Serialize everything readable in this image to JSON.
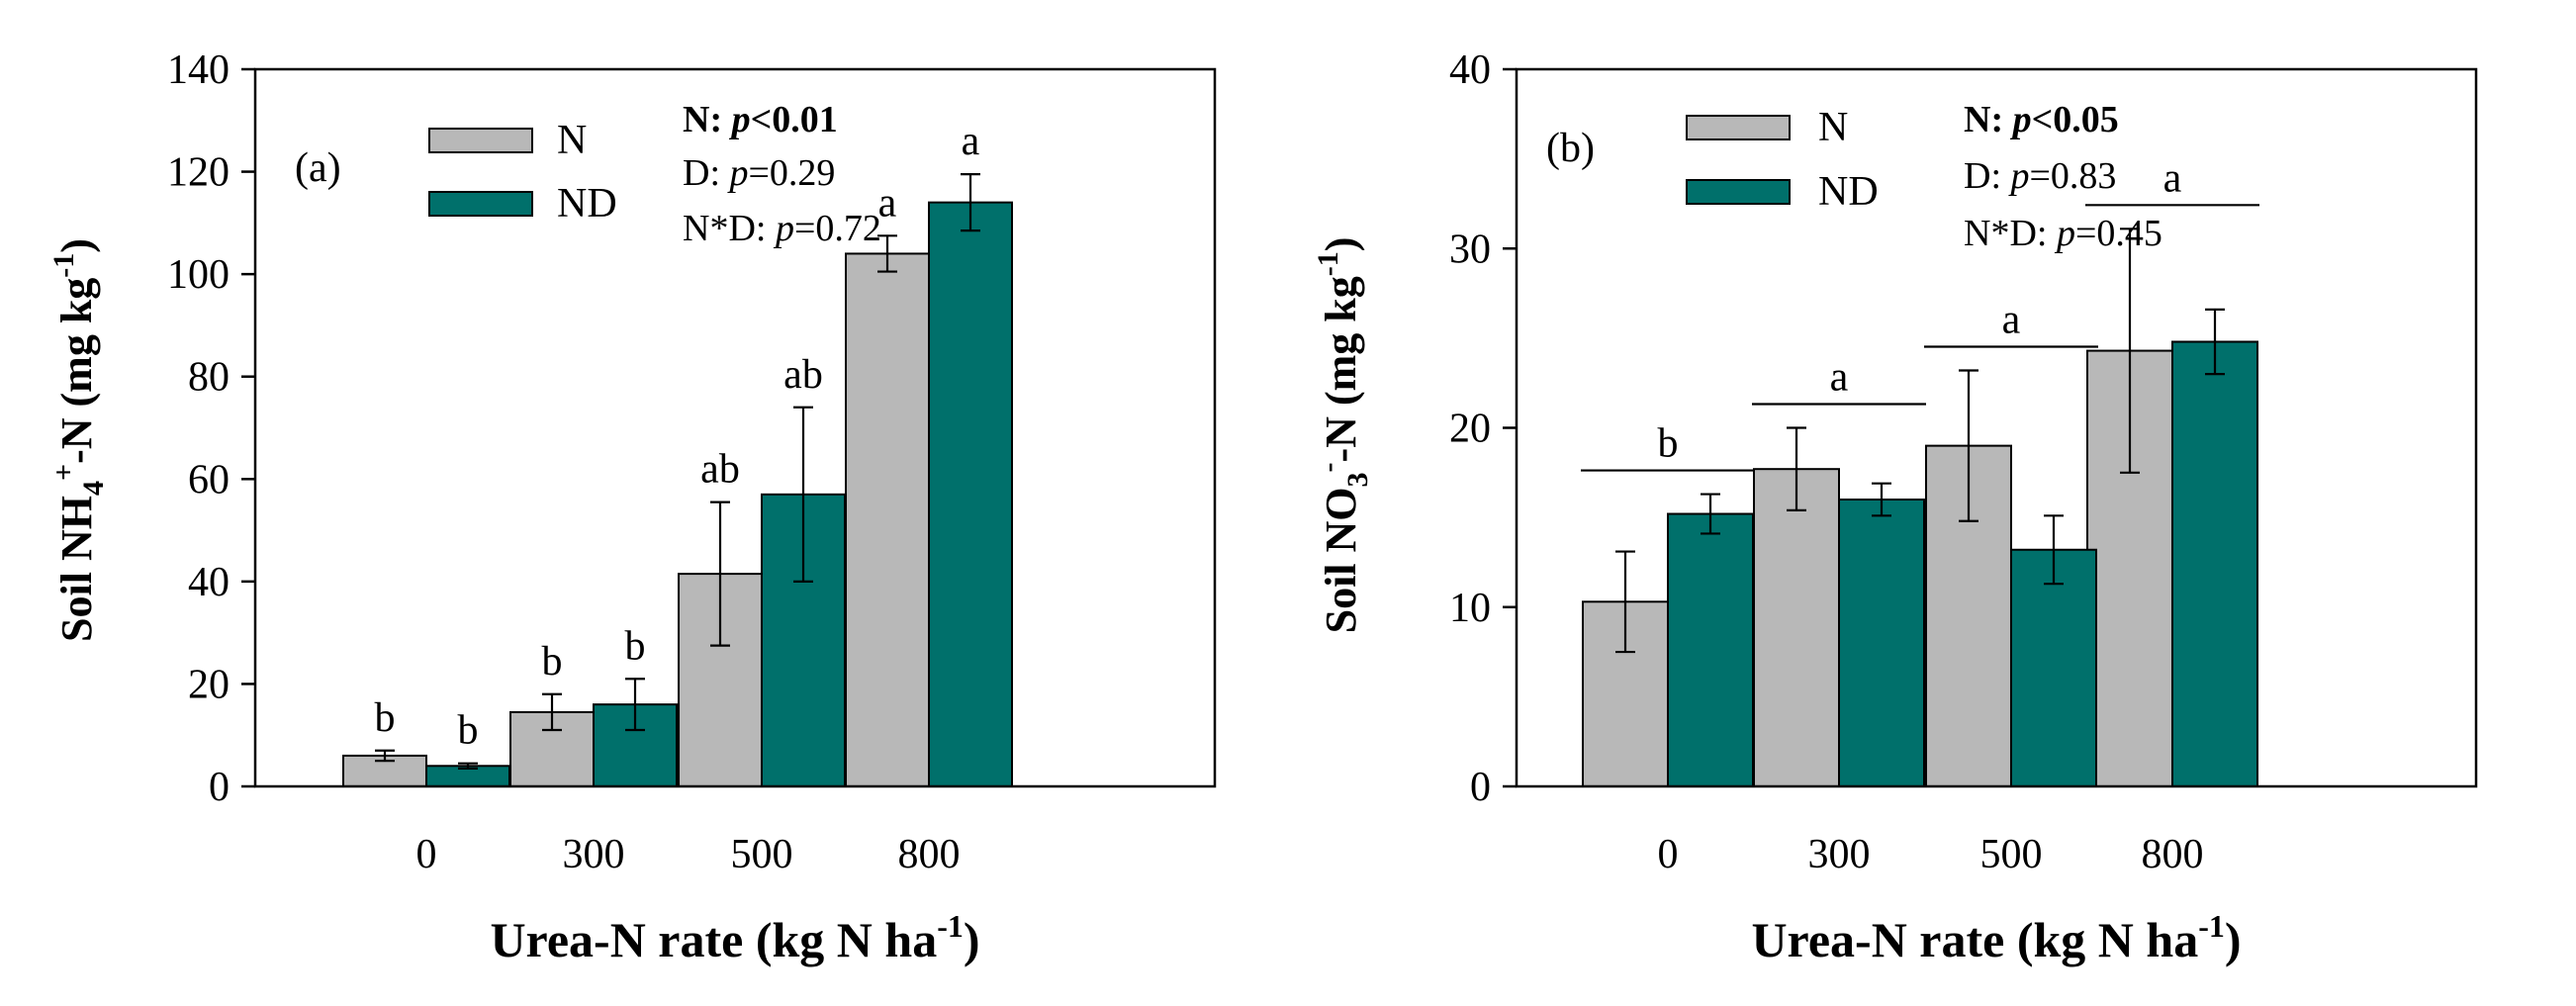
{
  "colors": {
    "N": "#b8b8b8",
    "ND": "#00706b",
    "axis": "#000000"
  },
  "chart_data": [
    {
      "type": "bar",
      "panel_label": "(a)",
      "categories": [
        "0",
        "300",
        "500",
        "800"
      ],
      "xlabel": "Urea-N rate (kg N ha",
      "xlabel_sup": "-1",
      "xlabel_end": ")",
      "ylabel": "Soil NH",
      "ylabel_sub": "4",
      "ylabel_sup": "+",
      "ylabel_mid": "-N (mg kg",
      "ylabel_sup2": "-1",
      "ylabel_end": ")",
      "ylim": [
        0,
        140
      ],
      "yticks": [
        "0",
        "20",
        "40",
        "60",
        "80",
        "100",
        "120",
        "140"
      ],
      "series": [
        {
          "name": "N",
          "values": [
            6,
            14.5,
            41.5,
            104
          ],
          "errors": [
            1,
            3.5,
            14,
            3.5
          ],
          "letters": [
            "b",
            "b",
            "ab",
            "a"
          ]
        },
        {
          "name": "ND",
          "values": [
            4,
            16,
            57,
            114
          ],
          "errors": [
            0.5,
            5,
            17,
            5.5
          ],
          "letters": [
            "b",
            "b",
            "ab",
            "a"
          ]
        }
      ],
      "group_letters": null,
      "stats": [
        {
          "label": "N: ",
          "p": "p",
          "value": "<0.01",
          "bold": true
        },
        {
          "label": "D: ",
          "p": "p",
          "value": "=0.29",
          "bold": false
        },
        {
          "label": "N*D: ",
          "p": "p",
          "value": "=0.72",
          "bold": false
        }
      ]
    },
    {
      "type": "bar",
      "panel_label": "(b)",
      "categories": [
        "0",
        "300",
        "500",
        "800"
      ],
      "xlabel": "Urea-N rate (kg N ha",
      "xlabel_sup": "-1",
      "xlabel_end": ")",
      "ylabel": "Soil NO",
      "ylabel_sub": "3",
      "ylabel_sup": "-",
      "ylabel_mid": "-N (mg kg",
      "ylabel_sup2": "-1",
      "ylabel_end": ")",
      "ylim": [
        0,
        40
      ],
      "yticks": [
        "0",
        "10",
        "20",
        "30",
        "40"
      ],
      "series": [
        {
          "name": "N",
          "values": [
            10.3,
            17.7,
            19,
            24.3
          ],
          "errors": [
            2.8,
            2.3,
            4.2,
            6.8
          ],
          "letters": null
        },
        {
          "name": "ND",
          "values": [
            15.2,
            16,
            13.2,
            24.8
          ],
          "errors": [
            1.1,
            0.9,
            1.9,
            1.8
          ],
          "letters": null
        }
      ],
      "group_letters": [
        "b",
        "a",
        "a",
        "a"
      ],
      "stats": [
        {
          "label": "N: ",
          "p": "p",
          "value": "<0.05",
          "bold": true
        },
        {
          "label": "D: ",
          "p": "p",
          "value": "=0.83",
          "bold": false
        },
        {
          "label": "N*D: ",
          "p": "p",
          "value": "=0.45",
          "bold": false
        }
      ]
    }
  ]
}
